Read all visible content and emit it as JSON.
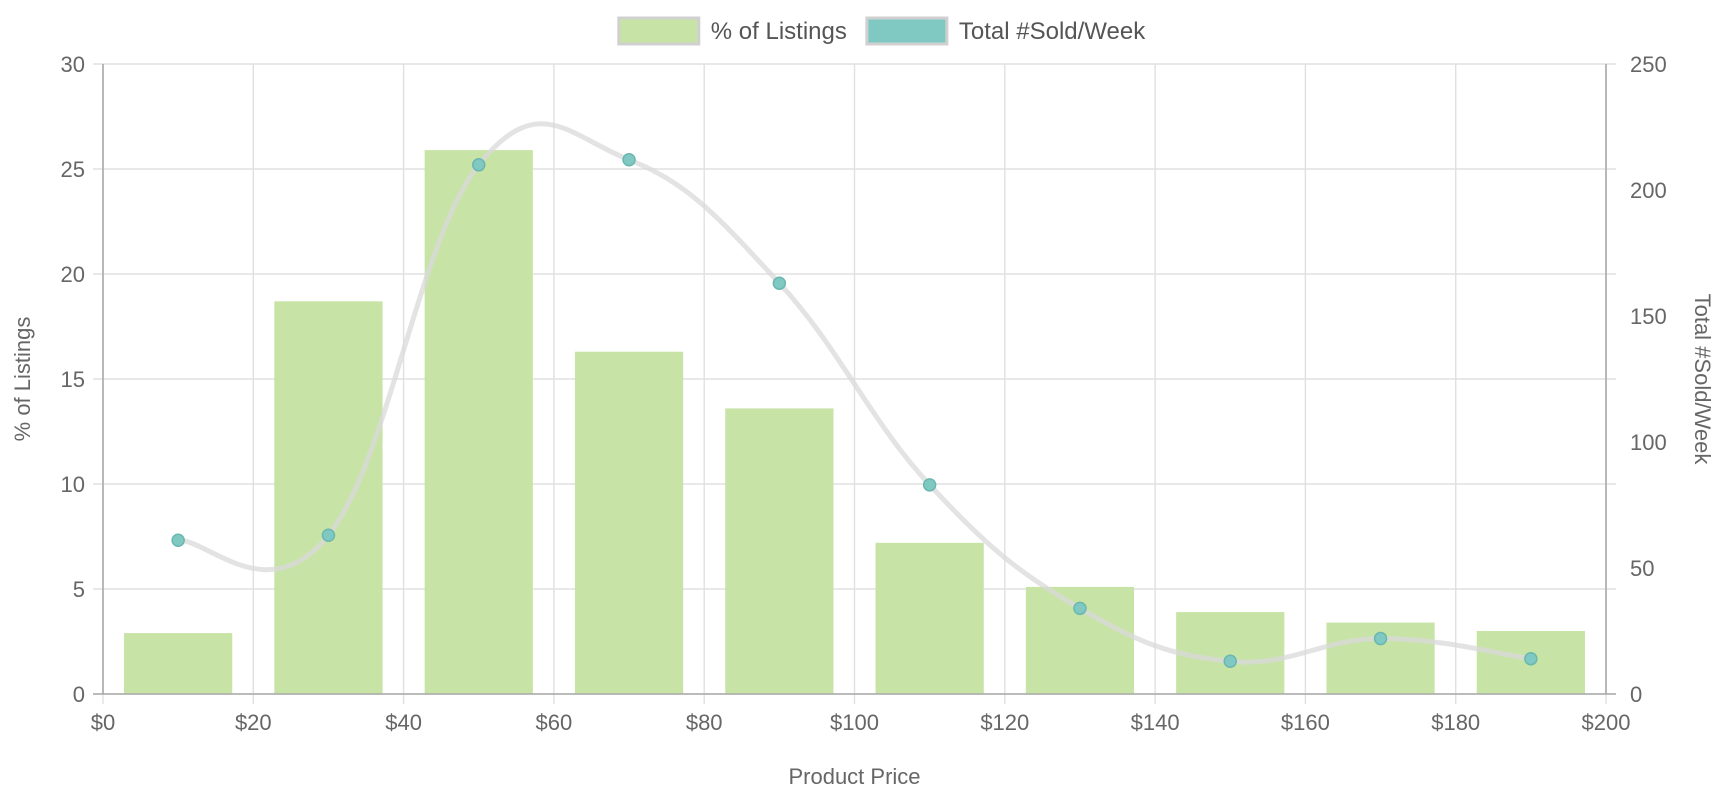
{
  "chart_data": {
    "type": "bar",
    "legend": {
      "position": "top-center",
      "items": [
        {
          "label": "% of Listings",
          "color": "#c7e3a6"
        },
        {
          "label": "Total #Sold/Week",
          "color": "#80c9c3"
        }
      ]
    },
    "xlabel": "Product Price",
    "x_ticks": [
      "$0",
      "$20",
      "$40",
      "$60",
      "$80",
      "$100",
      "$120",
      "$140",
      "$160",
      "$180",
      "$200"
    ],
    "xlim": [
      0,
      200
    ],
    "y_left": {
      "label": "% of Listings",
      "lim": [
        0,
        30
      ],
      "ticks": [
        0,
        5,
        10,
        15,
        20,
        25,
        30
      ]
    },
    "y_right": {
      "label": "Total #Sold/Week",
      "lim": [
        0,
        250
      ],
      "ticks": [
        0,
        50,
        100,
        150,
        200,
        250
      ]
    },
    "grid": true,
    "x": [
      10,
      30,
      50,
      70,
      90,
      110,
      130,
      150,
      170,
      190
    ],
    "series": [
      {
        "name": "% of Listings",
        "type": "bar",
        "axis": "left",
        "color": "#c7e3a6",
        "values": [
          2.9,
          18.7,
          25.9,
          16.3,
          13.6,
          7.2,
          5.1,
          3.9,
          3.4,
          3.0
        ]
      },
      {
        "name": "Total #Sold/Week",
        "type": "line",
        "axis": "right",
        "color": "#80c9c3",
        "line_color": "#d9d9d9",
        "values": [
          61,
          63,
          210,
          212,
          163,
          83,
          34,
          13,
          22,
          14
        ]
      }
    ]
  }
}
